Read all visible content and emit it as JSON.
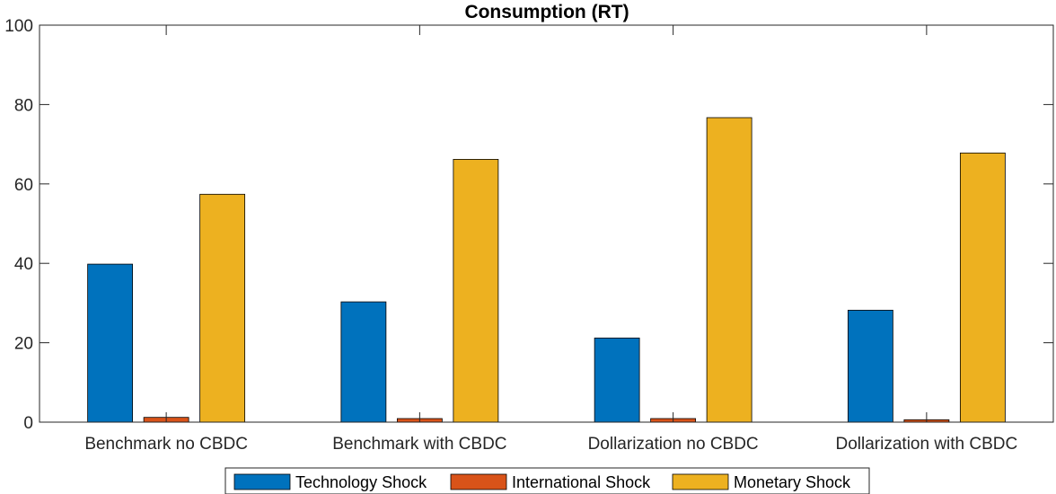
{
  "chart_data": {
    "type": "bar",
    "title": "Consumption (RT)",
    "xlabel": "",
    "ylabel": "",
    "ylim": [
      0,
      100
    ],
    "yticks": [
      0,
      20,
      40,
      60,
      80,
      100
    ],
    "grid": false,
    "legend_position": "bottom",
    "categories": [
      "Benchmark no CBDC",
      "Benchmark with CBDC",
      "Dollarization no CBDC",
      "Dollarization with CBDC"
    ],
    "series": [
      {
        "name": "Technology Shock",
        "color": "#0072BD",
        "values": [
          39.8,
          30.3,
          21.2,
          28.2
        ]
      },
      {
        "name": "International Shock",
        "color": "#D95319",
        "values": [
          1.2,
          0.9,
          0.9,
          0.6
        ]
      },
      {
        "name": "Monetary Shock",
        "color": "#EDB120",
        "values": [
          57.4,
          66.2,
          76.7,
          67.8
        ]
      }
    ]
  }
}
